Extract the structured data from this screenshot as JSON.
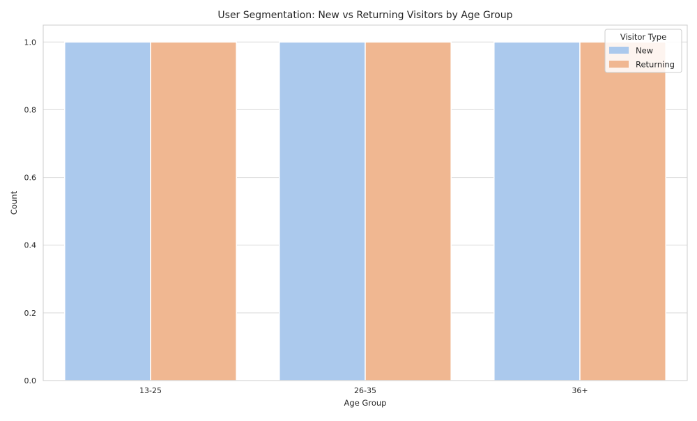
{
  "chart_data": {
    "type": "bar",
    "title": "User Segmentation: New vs Returning Visitors by Age Group",
    "xlabel": "Age Group",
    "ylabel": "Count",
    "categories": [
      "13-25",
      "26-35",
      "36+"
    ],
    "series": [
      {
        "name": "New",
        "values": [
          1,
          1,
          1
        ],
        "color": "#abc9ed"
      },
      {
        "name": "Returning",
        "values": [
          1,
          1,
          1
        ],
        "color": "#f0b791"
      }
    ],
    "ylim": [
      0,
      1.05
    ],
    "yticks": [
      "0.0",
      "0.2",
      "0.4",
      "0.6",
      "0.8",
      "1.0"
    ],
    "grid": true,
    "legend": {
      "title": "Visitor Type",
      "placement": "top-right"
    },
    "colors": {
      "grid": "#d9d9d9",
      "axes_edge": "#cccccc",
      "text": "#262626"
    }
  }
}
